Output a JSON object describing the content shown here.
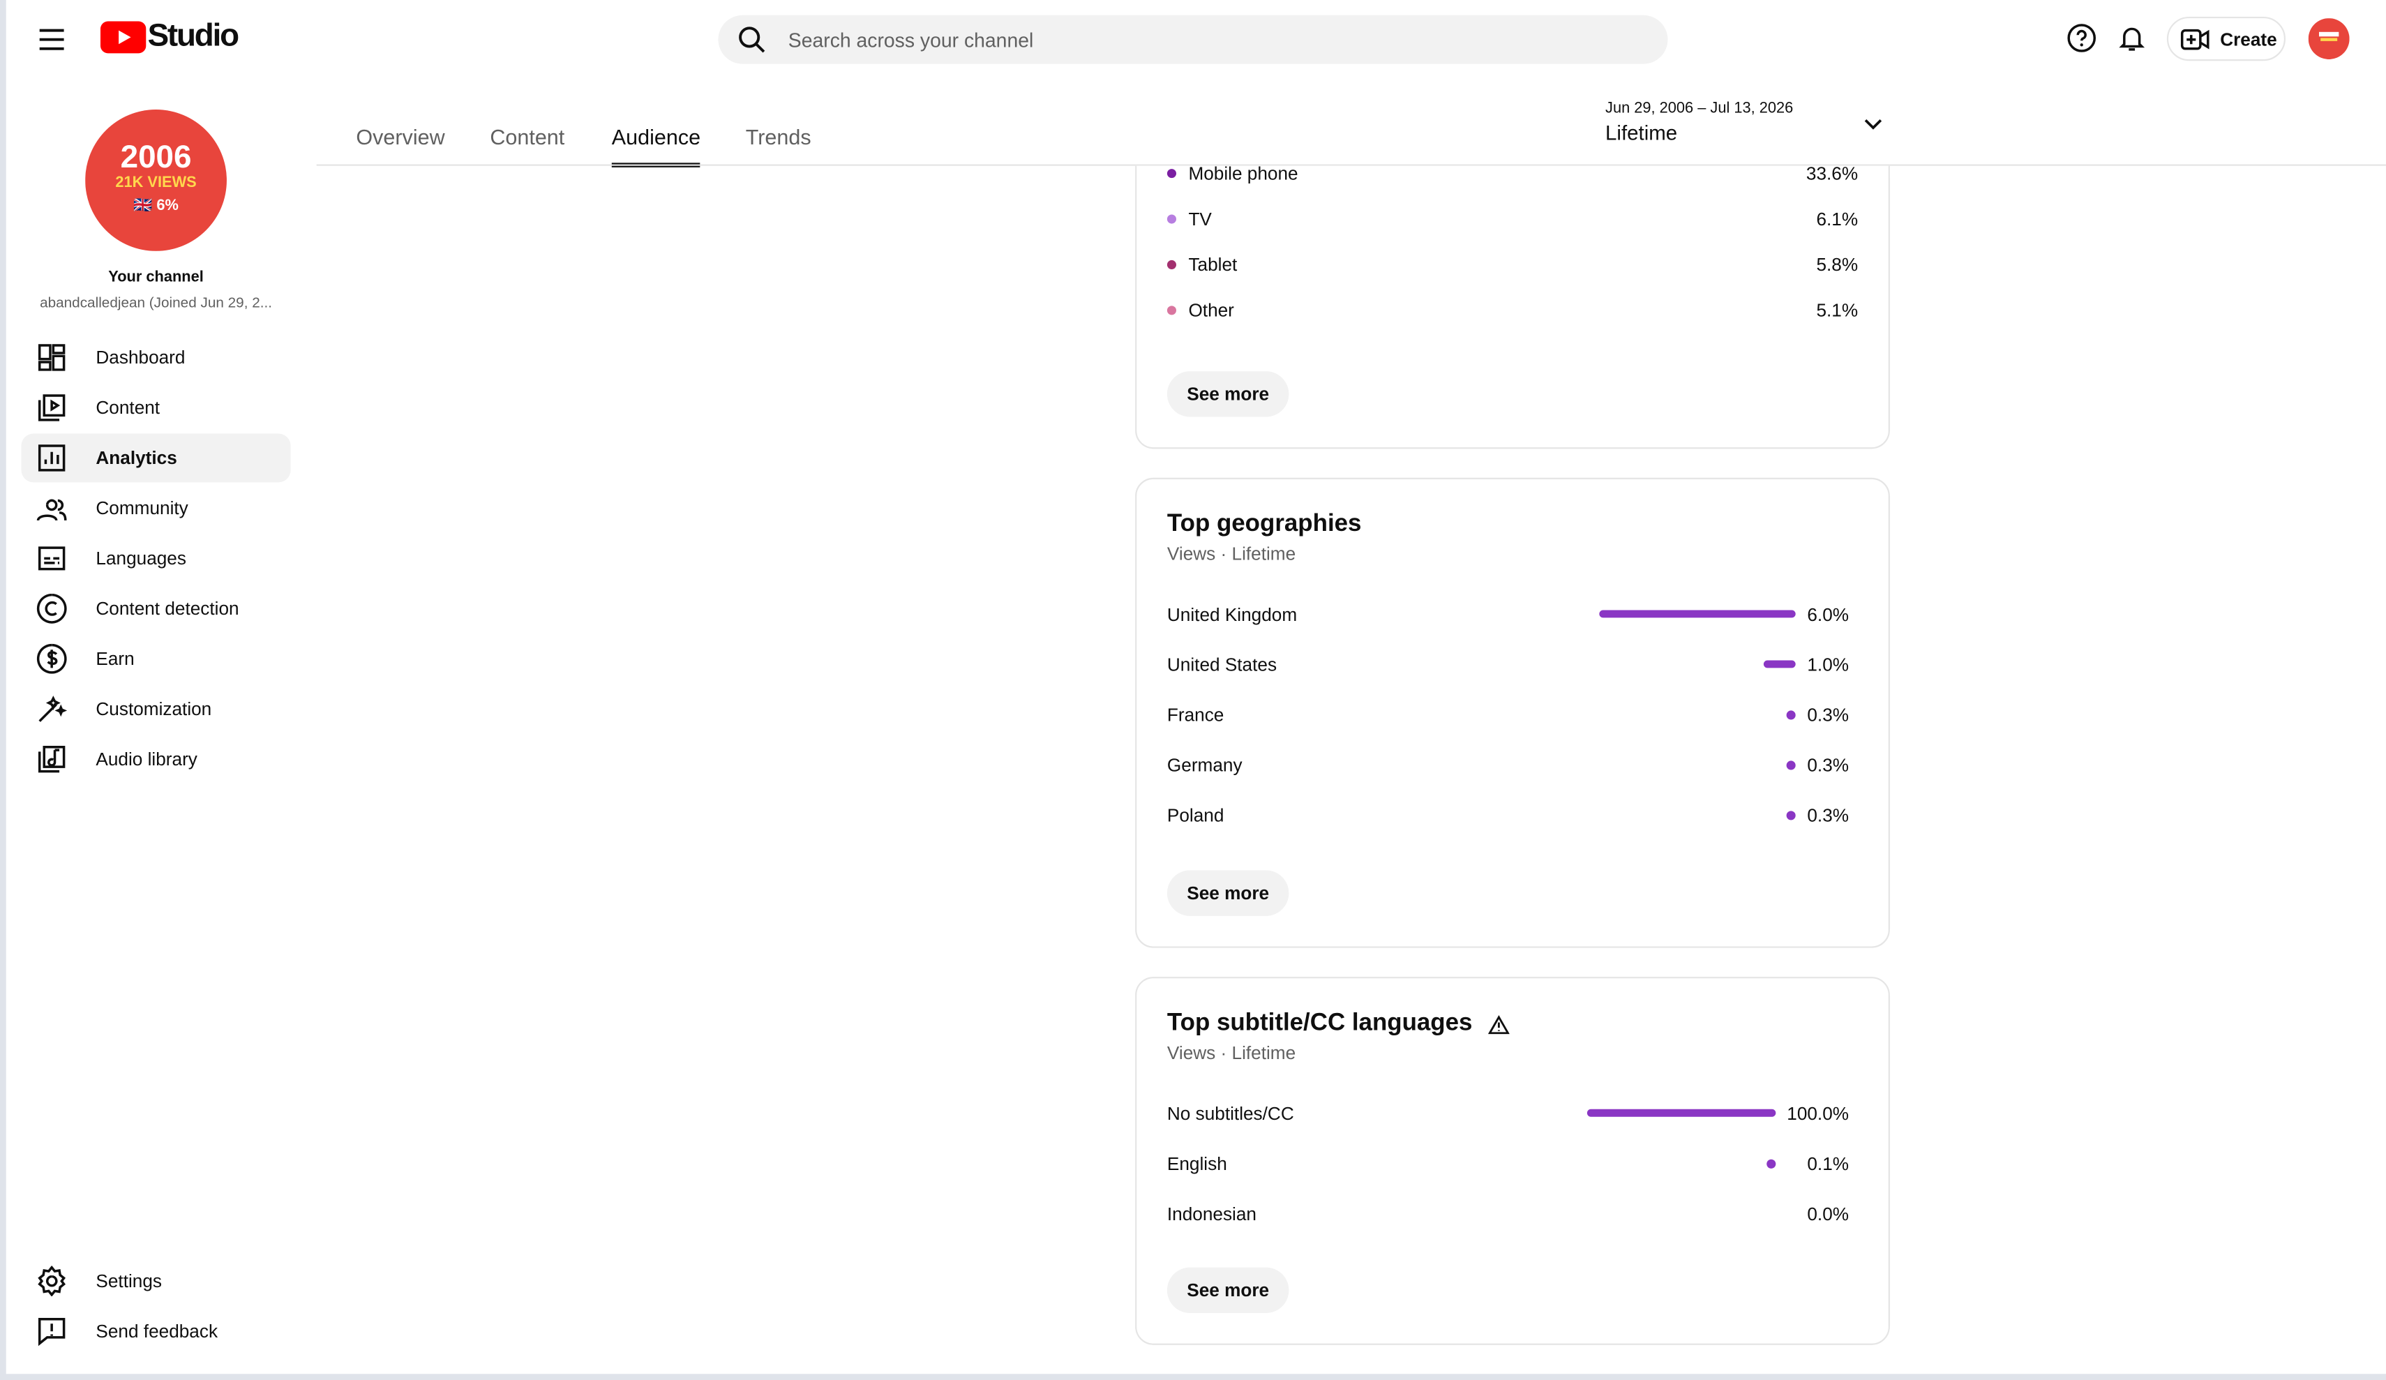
{
  "header": {
    "logo": "Studio",
    "search_placeholder": "Search across your channel",
    "create": "Create"
  },
  "sidebar": {
    "avatar": {
      "line1": "2006",
      "line2": "21K VIEWS",
      "line3": "🇬🇧 6%"
    },
    "channel_title": "Your channel",
    "channel_name": "abandcalledjean (Joined Jun 29, 2...",
    "nav": [
      "Dashboard",
      "Content",
      "Analytics",
      "Community",
      "Languages",
      "Content detection",
      "Earn",
      "Customization",
      "Audio library"
    ],
    "active_nav": 2,
    "footer": [
      "Settings",
      "Send feedback"
    ]
  },
  "tabs": [
    "Overview",
    "Content",
    "Audience",
    "Trends"
  ],
  "active_tab": 2,
  "date_range": {
    "range": "Jun 29, 2006 – Jul 13, 2026",
    "label": "Lifetime"
  },
  "devices": {
    "rows": [
      {
        "name": "Mobile phone",
        "value": 33.6,
        "label": "33.6%",
        "color": "#7b1fa2"
      },
      {
        "name": "TV",
        "value": 6.1,
        "label": "6.1%",
        "color": "#b77ee0"
      },
      {
        "name": "Tablet",
        "value": 5.8,
        "label": "5.8%",
        "color": "#a3306f"
      },
      {
        "name": "Other",
        "value": 5.1,
        "label": "5.1%",
        "color": "#d9769f"
      }
    ],
    "button": "See more"
  },
  "geographies": {
    "title": "Top geographies",
    "subtitle": "Views · Lifetime",
    "rows": [
      {
        "name": "United Kingdom",
        "value": 6.0,
        "label": "6.0%"
      },
      {
        "name": "United States",
        "value": 1.0,
        "label": "1.0%"
      },
      {
        "name": "France",
        "value": 0.3,
        "label": "0.3%"
      },
      {
        "name": "Germany",
        "value": 0.3,
        "label": "0.3%"
      },
      {
        "name": "Poland",
        "value": 0.3,
        "label": "0.3%"
      }
    ],
    "button": "See more"
  },
  "languages": {
    "title": "Top subtitle/CC languages",
    "subtitle": "Views · Lifetime",
    "rows": [
      {
        "name": "No subtitles/CC",
        "value": 100.0,
        "label": "100.0%"
      },
      {
        "name": "English",
        "value": 0.1,
        "label": "0.1%"
      },
      {
        "name": "Indonesian",
        "value": 0.0,
        "label": "0.0%"
      }
    ],
    "button": "See more"
  },
  "bar_color": "#8a36c4"
}
